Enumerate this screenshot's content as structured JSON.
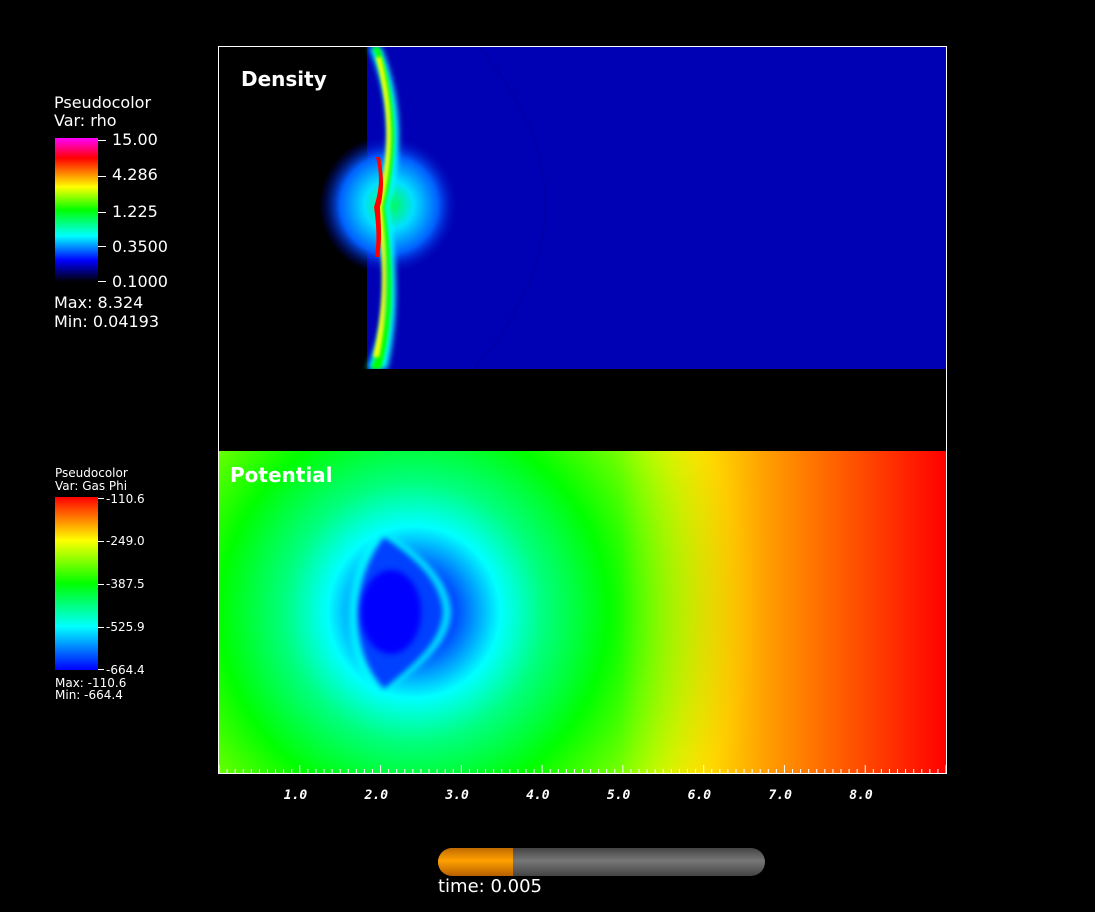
{
  "legend_rho": {
    "title": "Pseudocolor",
    "var": "Var: rho",
    "ticks": [
      "15.00",
      "4.286",
      "1.225",
      "0.3500",
      "0.1000"
    ],
    "max": "Max:  8.324",
    "min": "Min:  0.04193"
  },
  "legend_phi": {
    "title": "Pseudocolor",
    "var": "Var: Gas Phi",
    "ticks": [
      "-110.6",
      "-249.0",
      "-387.5",
      "-525.9",
      "-664.4"
    ],
    "max": "Max: -110.6",
    "min": "Min: -664.4"
  },
  "panels": {
    "density_title": "Density",
    "potential_title": "Potential"
  },
  "axis": {
    "ticks": [
      "1.0",
      "2.0",
      "3.0",
      "4.0",
      "5.0",
      "6.0",
      "7.0",
      "8.0"
    ],
    "range": [
      0,
      9
    ]
  },
  "time": {
    "label": "time: 0.005",
    "progress": 0.23
  },
  "colors": {
    "density_background": "#0000b4",
    "shock_core": "#ff0000"
  }
}
